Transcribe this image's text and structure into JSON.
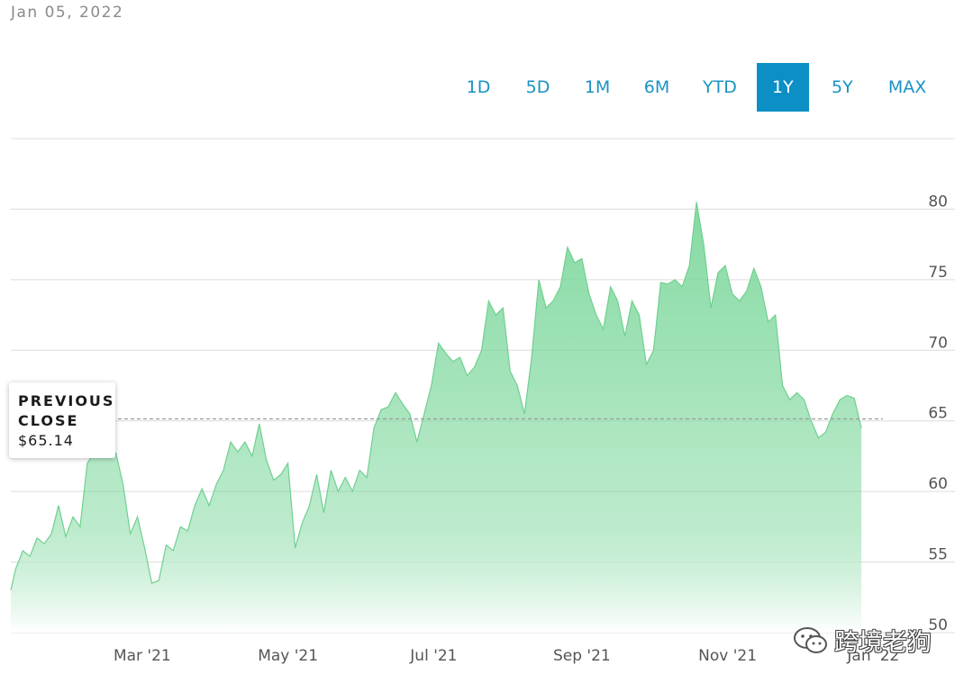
{
  "header": {
    "date": "Jan 05, 2022"
  },
  "range_buttons": [
    "1D",
    "5D",
    "1M",
    "6M",
    "YTD",
    "1Y",
    "5Y",
    "MAX"
  ],
  "active_range": "1Y",
  "tooltip": {
    "line1": "PREVIOUS",
    "line2": "CLOSE",
    "value": "$65.14"
  },
  "watermark": {
    "text": "跨境老狗",
    "icon": "wechat-icon"
  },
  "colors": {
    "fill_top": "#7fd89e",
    "fill_bottom": "#ffffff",
    "active_button": "#0b8fc4",
    "button_text": "#1a93c4",
    "grid": "#dcdcdc"
  },
  "chart_data": {
    "type": "area",
    "title": "",
    "xlabel": "",
    "ylabel": "",
    "x_tick_labels": [
      "Mar '21",
      "May '21",
      "Jul '21",
      "Sep '21",
      "Nov '21",
      "Jan '22"
    ],
    "x_tick_dates": [
      "2021-03-01",
      "2021-05-01",
      "2021-07-01",
      "2021-09-01",
      "2021-11-01",
      "2022-01-01"
    ],
    "y_ticks": [
      50,
      55,
      60,
      65,
      70,
      75,
      80
    ],
    "ylim": [
      50,
      85
    ],
    "grid": true,
    "reference_line": {
      "label": "PREVIOUS CLOSE",
      "value": 65.14,
      "style": "dashed"
    },
    "series": [
      {
        "values": [
          [
            "2021-01-05",
            53.0
          ],
          [
            "2021-01-07",
            54.5
          ],
          [
            "2021-01-10",
            55.8
          ],
          [
            "2021-01-13",
            55.4
          ],
          [
            "2021-01-16",
            56.7
          ],
          [
            "2021-01-19",
            56.3
          ],
          [
            "2021-01-22",
            57.0
          ],
          [
            "2021-01-25",
            59.0
          ],
          [
            "2021-01-28",
            56.8
          ],
          [
            "2021-01-31",
            58.2
          ],
          [
            "2021-02-03",
            57.5
          ],
          [
            "2021-02-06",
            62.0
          ],
          [
            "2021-02-09",
            62.8
          ],
          [
            "2021-02-12",
            62.5
          ],
          [
            "2021-02-15",
            63.0
          ],
          [
            "2021-02-18",
            62.7
          ],
          [
            "2021-02-21",
            60.5
          ],
          [
            "2021-02-24",
            57.0
          ],
          [
            "2021-02-27",
            58.2
          ],
          [
            "2021-03-02",
            56.0
          ],
          [
            "2021-03-05",
            53.5
          ],
          [
            "2021-03-08",
            53.7
          ],
          [
            "2021-03-11",
            56.2
          ],
          [
            "2021-03-14",
            55.8
          ],
          [
            "2021-03-17",
            57.5
          ],
          [
            "2021-03-20",
            57.2
          ],
          [
            "2021-03-23",
            59.0
          ],
          [
            "2021-03-26",
            60.2
          ],
          [
            "2021-03-29",
            59.0
          ],
          [
            "2021-04-01",
            60.5
          ],
          [
            "2021-04-04",
            61.5
          ],
          [
            "2021-04-07",
            63.5
          ],
          [
            "2021-04-10",
            62.8
          ],
          [
            "2021-04-13",
            63.5
          ],
          [
            "2021-04-16",
            62.5
          ],
          [
            "2021-04-19",
            64.8
          ],
          [
            "2021-04-22",
            62.2
          ],
          [
            "2021-04-25",
            60.8
          ],
          [
            "2021-04-28",
            61.2
          ],
          [
            "2021-05-01",
            62.0
          ],
          [
            "2021-05-04",
            56.0
          ],
          [
            "2021-05-07",
            57.8
          ],
          [
            "2021-05-10",
            59.0
          ],
          [
            "2021-05-13",
            61.2
          ],
          [
            "2021-05-16",
            58.5
          ],
          [
            "2021-05-19",
            61.5
          ],
          [
            "2021-05-22",
            60.0
          ],
          [
            "2021-05-25",
            61.0
          ],
          [
            "2021-05-28",
            60.0
          ],
          [
            "2021-05-31",
            61.5
          ],
          [
            "2021-06-03",
            61.0
          ],
          [
            "2021-06-06",
            64.5
          ],
          [
            "2021-06-09",
            65.8
          ],
          [
            "2021-06-12",
            66.0
          ],
          [
            "2021-06-15",
            67.0
          ],
          [
            "2021-06-18",
            66.2
          ],
          [
            "2021-06-21",
            65.5
          ],
          [
            "2021-06-24",
            63.5
          ],
          [
            "2021-06-27",
            65.5
          ],
          [
            "2021-06-30",
            67.5
          ],
          [
            "2021-07-03",
            70.5
          ],
          [
            "2021-07-06",
            69.8
          ],
          [
            "2021-07-09",
            69.2
          ],
          [
            "2021-07-12",
            69.5
          ],
          [
            "2021-07-15",
            68.2
          ],
          [
            "2021-07-18",
            68.8
          ],
          [
            "2021-07-21",
            70.0
          ],
          [
            "2021-07-24",
            73.5
          ],
          [
            "2021-07-27",
            72.5
          ],
          [
            "2021-07-30",
            73.0
          ],
          [
            "2021-08-02",
            68.5
          ],
          [
            "2021-08-05",
            67.5
          ],
          [
            "2021-08-08",
            65.5
          ],
          [
            "2021-08-11",
            69.5
          ],
          [
            "2021-08-14",
            75.0
          ],
          [
            "2021-08-17",
            73.0
          ],
          [
            "2021-08-20",
            73.5
          ],
          [
            "2021-08-23",
            74.5
          ],
          [
            "2021-08-26",
            77.3
          ],
          [
            "2021-08-29",
            76.2
          ],
          [
            "2021-09-01",
            76.5
          ],
          [
            "2021-09-04",
            74.0
          ],
          [
            "2021-09-07",
            72.5
          ],
          [
            "2021-09-10",
            71.5
          ],
          [
            "2021-09-13",
            74.5
          ],
          [
            "2021-09-16",
            73.5
          ],
          [
            "2021-09-19",
            71.0
          ],
          [
            "2021-09-22",
            73.5
          ],
          [
            "2021-09-25",
            72.5
          ],
          [
            "2021-09-28",
            69.0
          ],
          [
            "2021-10-01",
            70.0
          ],
          [
            "2021-10-04",
            74.8
          ],
          [
            "2021-10-07",
            74.7
          ],
          [
            "2021-10-10",
            75.0
          ],
          [
            "2021-10-13",
            74.5
          ],
          [
            "2021-10-16",
            76.0
          ],
          [
            "2021-10-19",
            80.5
          ],
          [
            "2021-10-22",
            77.5
          ],
          [
            "2021-10-25",
            73.0
          ],
          [
            "2021-10-28",
            75.5
          ],
          [
            "2021-10-31",
            76.0
          ],
          [
            "2021-11-03",
            74.0
          ],
          [
            "2021-11-06",
            73.5
          ],
          [
            "2021-11-09",
            74.2
          ],
          [
            "2021-11-12",
            75.8
          ],
          [
            "2021-11-15",
            74.5
          ],
          [
            "2021-11-18",
            72.0
          ],
          [
            "2021-11-21",
            72.5
          ],
          [
            "2021-11-24",
            67.5
          ],
          [
            "2021-11-27",
            66.5
          ],
          [
            "2021-11-30",
            67.0
          ],
          [
            "2021-12-03",
            66.5
          ],
          [
            "2021-12-06",
            65.0
          ],
          [
            "2021-12-09",
            63.8
          ],
          [
            "2021-12-12",
            64.2
          ],
          [
            "2021-12-15",
            65.5
          ],
          [
            "2021-12-18",
            66.5
          ],
          [
            "2021-12-21",
            66.8
          ],
          [
            "2021-12-24",
            66.6
          ],
          [
            "2021-12-27",
            64.5
          ]
        ]
      }
    ]
  }
}
